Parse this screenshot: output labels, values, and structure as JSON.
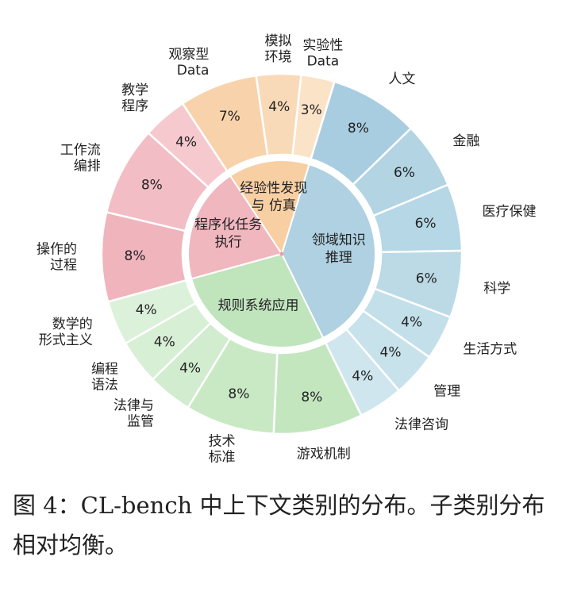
{
  "chart_data": {
    "type": "sunburst",
    "groups": [
      {
        "name": [
          "领域知识",
          "推理"
        ],
        "color": "#afd1e1",
        "names": [
          [
            "人文"
          ],
          [
            "金融"
          ],
          [
            "医疗保健"
          ],
          [
            "科学"
          ],
          [
            "生活方式"
          ],
          [
            "管理"
          ],
          [
            "法律咨询"
          ]
        ],
        "values": [
          8,
          6,
          6,
          6,
          4,
          4,
          4
        ],
        "value_labels": [
          "8%",
          "6%",
          "6%",
          "6%",
          "4%",
          "4%",
          "4%"
        ],
        "colors": [
          "#a9cde0",
          "#b2d4e3",
          "#b6d7e5",
          "#bbdae6",
          "#c3dfe9",
          "#c8e2ec",
          "#cfe6ee"
        ]
      },
      {
        "name": [
          "规则系统应用"
        ],
        "color": "#c0e5bd",
        "names": [
          [
            "游戏机制"
          ],
          [
            "技术",
            "标准"
          ],
          [
            "法律与",
            "监管"
          ],
          [
            "编程",
            "语法"
          ],
          [
            "数学的",
            "形式主义"
          ]
        ],
        "values": [
          8,
          8,
          4,
          4,
          4
        ],
        "value_labels": [
          "8%",
          "8%",
          "4%",
          "4%",
          "4%"
        ],
        "colors": [
          "#c3e6bf",
          "#c9e9c5",
          "#d1ecce",
          "#d7efd4",
          "#dcf1da"
        ]
      },
      {
        "name": [
          "程序化任务",
          "执行"
        ],
        "color": "#f0b7bf",
        "names": [
          [
            "操作的",
            "过程"
          ],
          [
            "工作流",
            "编排"
          ],
          [
            "教学",
            "程序"
          ]
        ],
        "values": [
          8,
          8,
          4
        ],
        "value_labels": [
          "8%",
          "8%",
          "4%"
        ],
        "colors": [
          "#f0b4bc",
          "#f2bdc4",
          "#f5c9ce"
        ]
      },
      {
        "name": [
          "经验性发现",
          "与 仿真"
        ],
        "color": "#f7cfa3",
        "names": [
          [
            "观察型",
            "Data"
          ],
          [
            "模拟",
            "环境"
          ],
          [
            "实验性",
            "Data"
          ]
        ],
        "values": [
          7,
          4,
          3
        ],
        "value_labels": [
          "7%",
          "4%",
          "3%"
        ],
        "colors": [
          "#f7d2ab",
          "#f9dab8",
          "#fbe3c8"
        ]
      }
    ],
    "caption": "图 4：CL-bench 中上下文类别的分布。子类别分布相对均衡。"
  }
}
